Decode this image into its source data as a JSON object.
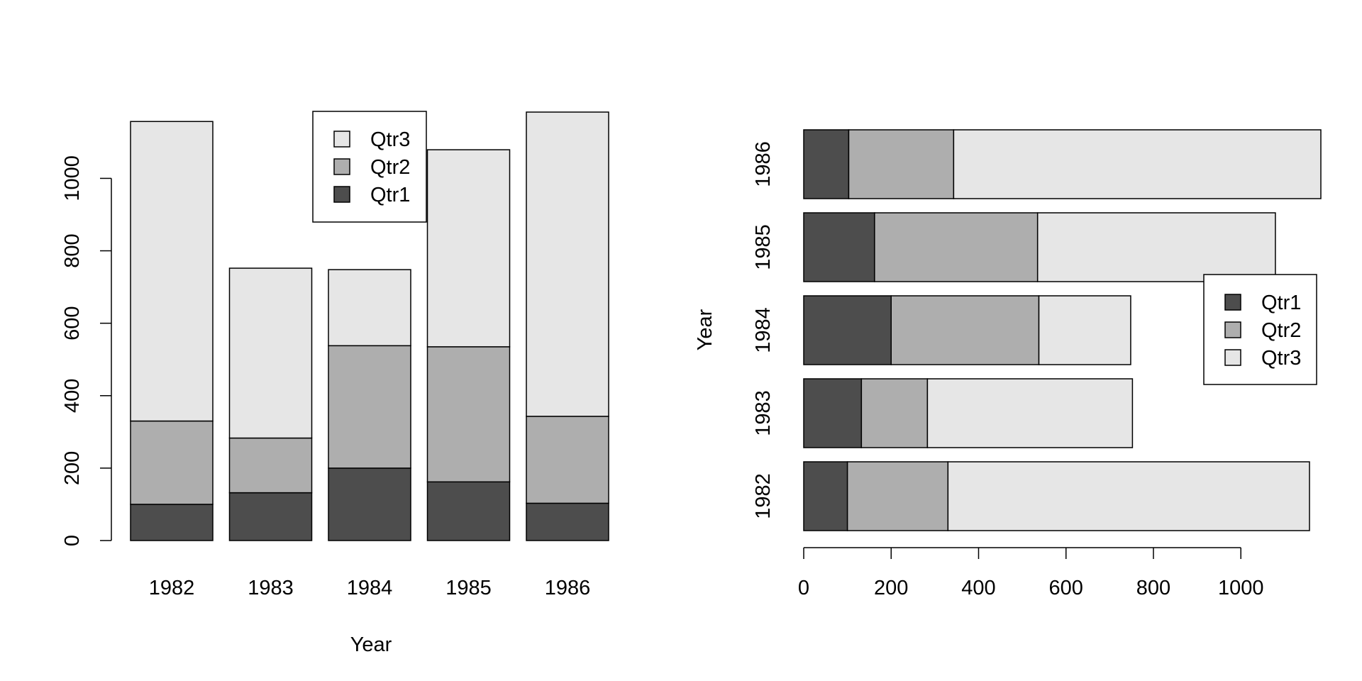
{
  "colors": {
    "Qtr1": "#4d4d4d",
    "Qtr2": "#aeaeae",
    "Qtr3": "#e6e6e6",
    "axis": "#000000"
  },
  "chart_data": [
    {
      "type": "bar",
      "orientation": "vertical",
      "stacked": true,
      "xlabel": "Year",
      "ylabel": "",
      "categories": [
        "1982",
        "1983",
        "1984",
        "1985",
        "1986"
      ],
      "series": [
        {
          "name": "Qtr1",
          "values": [
            100,
            132,
            200,
            162,
            103
          ]
        },
        {
          "name": "Qtr2",
          "values": [
            230,
            151,
            338,
            373,
            240
          ]
        },
        {
          "name": "Qtr3",
          "values": [
            827,
            469,
            210,
            544,
            840
          ]
        }
      ],
      "ylim": [
        0,
        1183
      ],
      "yticks": [
        0,
        200,
        400,
        600,
        800,
        1000
      ],
      "legend": {
        "placement": "top-center",
        "order": [
          "Qtr3",
          "Qtr2",
          "Qtr1"
        ]
      },
      "grid": false
    },
    {
      "type": "bar",
      "orientation": "horizontal",
      "stacked": true,
      "xlabel": "",
      "ylabel": "Year",
      "categories": [
        "1982",
        "1983",
        "1984",
        "1985",
        "1986"
      ],
      "series": [
        {
          "name": "Qtr1",
          "values": [
            100,
            132,
            200,
            162,
            103
          ]
        },
        {
          "name": "Qtr2",
          "values": [
            230,
            151,
            338,
            373,
            240
          ]
        },
        {
          "name": "Qtr3",
          "values": [
            827,
            469,
            210,
            544,
            840
          ]
        }
      ],
      "xlim": [
        0,
        1183
      ],
      "xticks": [
        0,
        200,
        400,
        600,
        800,
        1000
      ],
      "legend": {
        "placement": "right",
        "order": [
          "Qtr1",
          "Qtr2",
          "Qtr3"
        ]
      },
      "grid": false
    }
  ]
}
